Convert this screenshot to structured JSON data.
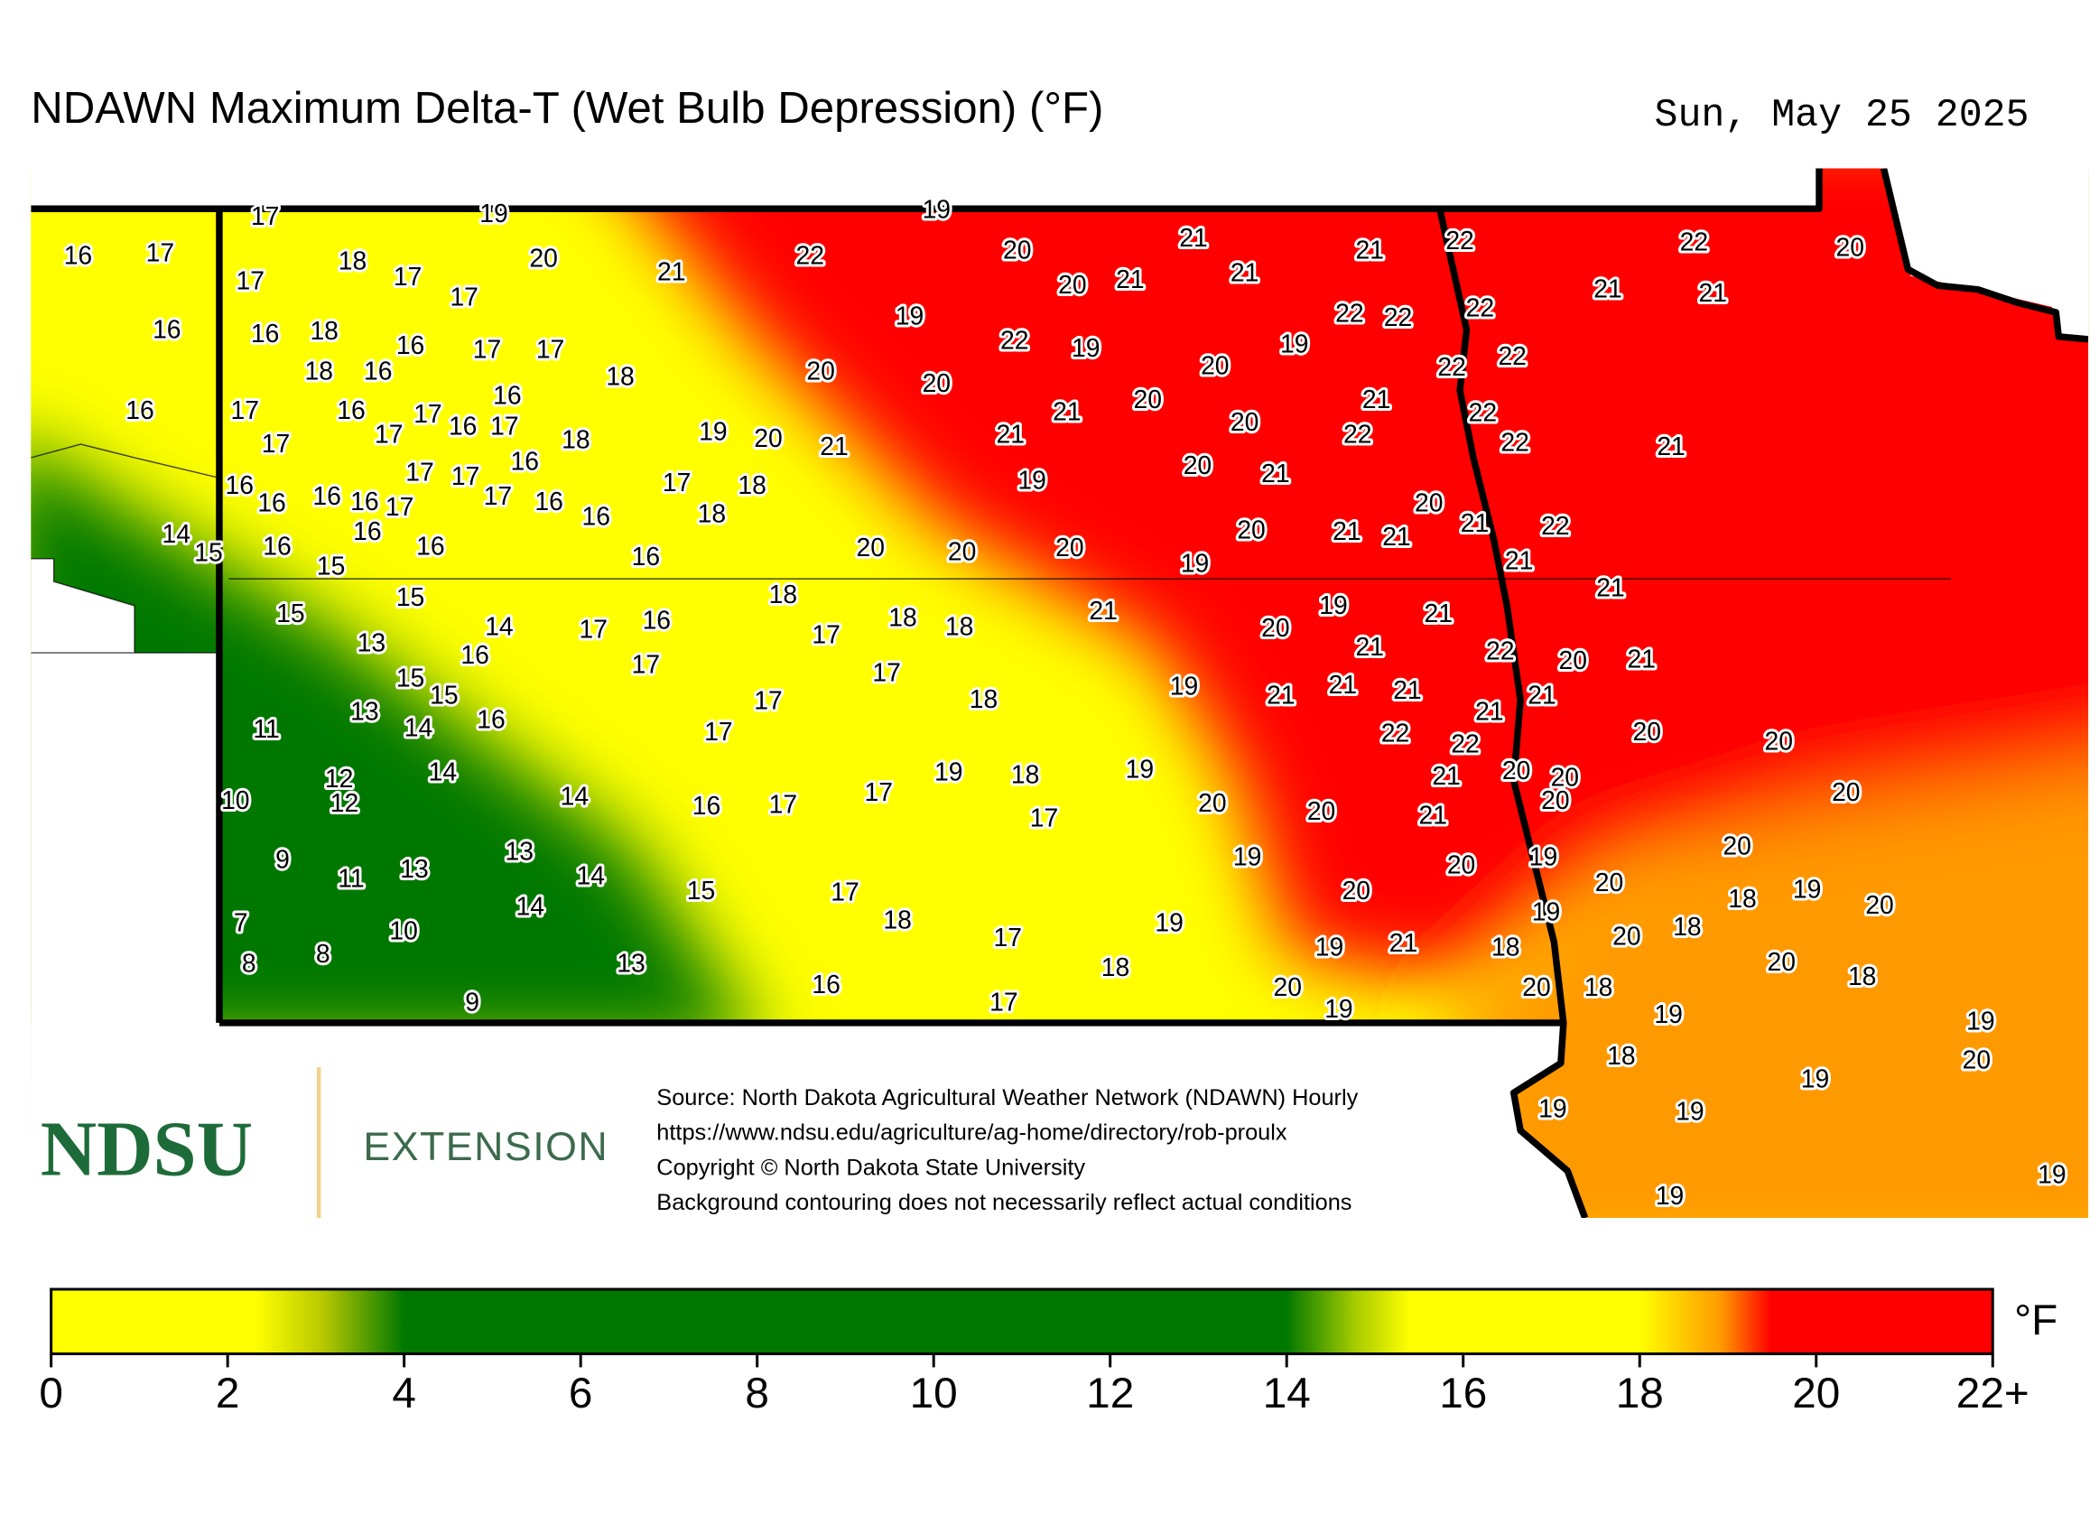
{
  "header": {
    "title": "NDAWN Maximum Delta-T (Wet Bulb Depression) (°F)",
    "date": "Sun, May 25 2025"
  },
  "map": {
    "stations": [
      17,
      19,
      19,
      16,
      17,
      18,
      17,
      17,
      17,
      20,
      21,
      22,
      20,
      21,
      21,
      22,
      22,
      20,
      20,
      21,
      21,
      21,
      21,
      16,
      16,
      18,
      16,
      17,
      17,
      19,
      22,
      19,
      22,
      22,
      22,
      19,
      18,
      16,
      18,
      20,
      20,
      20,
      22,
      22,
      16,
      17,
      16,
      17,
      16,
      21,
      20,
      21,
      22,
      17,
      17,
      16,
      17,
      18,
      19,
      20,
      21,
      21,
      20,
      22,
      22,
      21,
      17,
      17,
      16,
      20,
      21,
      19,
      16,
      17,
      18,
      16,
      16,
      16,
      17,
      17,
      16,
      16,
      18,
      20,
      21,
      22,
      14,
      15,
      16,
      16,
      16,
      15,
      16,
      20,
      20,
      20,
      20,
      21,
      21,
      19,
      21,
      15,
      15,
      18,
      21,
      14,
      13,
      17,
      16,
      17,
      18,
      18,
      21,
      20,
      19,
      21,
      16,
      17,
      21,
      22,
      20,
      21,
      15,
      15,
      17,
      18,
      19,
      21,
      21,
      21,
      21,
      21,
      11,
      13,
      14,
      16,
      17,
      17,
      22,
      22,
      20,
      20,
      14,
      12,
      19,
      18,
      19,
      21,
      20,
      20,
      10,
      12,
      14,
      16,
      17,
      17,
      17,
      20,
      20,
      21,
      20,
      20,
      9,
      13,
      13,
      11,
      14,
      19,
      20,
      19,
      20,
      15,
      17,
      20,
      20,
      18,
      19,
      20,
      14,
      7,
      10,
      18,
      19,
      19,
      18,
      20,
      8,
      8,
      17,
      19,
      21,
      18,
      20,
      18,
      13,
      18,
      9,
      16,
      17,
      20,
      19,
      20,
      18,
      19,
      19,
      18,
      20,
      19,
      19,
      19,
      19,
      19
    ]
  },
  "logo": {
    "name": "NDSU",
    "unit": "EXTENSION"
  },
  "source": [
    "Source: North Dakota Agricultural Weather Network (NDAWN) Hourly",
    "https://www.ndsu.edu/agriculture/ag-home/directory/rob-proulx",
    "Copyright © North Dakota State University",
    "Background contouring does not necessarily reflect actual conditions"
  ],
  "colorbar": {
    "range": [
      0,
      22
    ],
    "ticks": [
      0,
      2,
      4,
      6,
      8,
      10,
      12,
      14,
      16,
      18,
      20,
      {
        "value": 22,
        "label": "22+"
      }
    ],
    "unit": "°F"
  }
}
